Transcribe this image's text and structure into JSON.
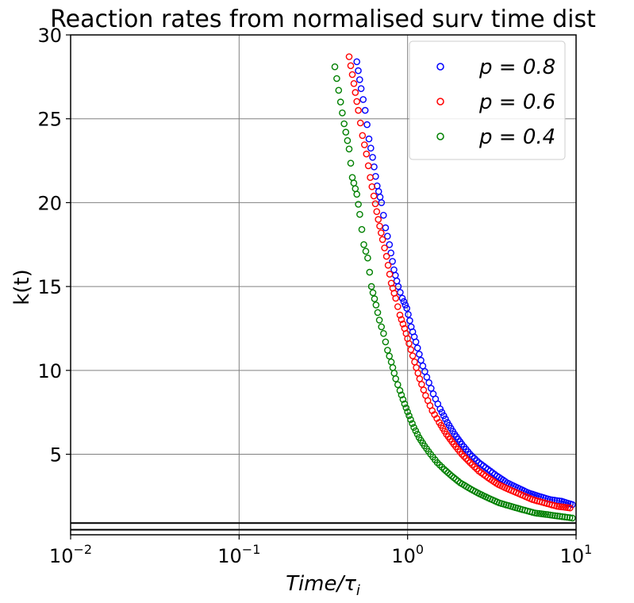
{
  "chart_data": {
    "type": "scatter",
    "title": "Reaction rates from normalised surv time dist",
    "xlabel": "Time/τ",
    "xlabel_sub": "i",
    "ylabel": "k(t)",
    "xscale": "log",
    "xlim": [
      0.01,
      10
    ],
    "ylim": [
      0.2,
      30
    ],
    "grid": true,
    "legend_position": "top-right",
    "x_ticks": [
      {
        "value": 0.01,
        "base": "10",
        "exp": "−2"
      },
      {
        "value": 0.1,
        "base": "10",
        "exp": "−1"
      },
      {
        "value": 1,
        "base": "10",
        "exp": "0"
      },
      {
        "value": 10,
        "base": "10",
        "exp": "1"
      }
    ],
    "y_ticks": [
      5,
      10,
      15,
      20,
      25,
      30
    ],
    "hlines": [
      0.5,
      0.9
    ],
    "series": [
      {
        "name": "p = 0.8",
        "color": "#0000ff",
        "x": [
          0.5,
          0.53,
          0.56,
          0.59,
          0.62,
          0.66,
          0.7,
          0.74,
          0.78,
          0.83,
          0.88,
          0.93,
          0.99,
          1.05,
          1.12,
          1.2,
          1.3,
          1.42,
          1.56,
          1.72,
          1.9,
          2.1,
          2.35,
          2.65,
          3.0,
          3.4,
          3.9,
          4.5,
          5.2,
          6.0,
          7.0,
          8.2,
          9.5
        ],
        "y": [
          28.4,
          26.8,
          25.5,
          23.8,
          22.7,
          21.0,
          20.0,
          18.5,
          17.5,
          16.0,
          15.0,
          14.3,
          13.7,
          12.6,
          11.7,
          10.6,
          9.6,
          8.6,
          7.7,
          6.9,
          6.2,
          5.6,
          5.0,
          4.5,
          4.1,
          3.7,
          3.3,
          3.0,
          2.7,
          2.5,
          2.3,
          2.2,
          2.0
        ]
      },
      {
        "name": "p = 0.6",
        "color": "#ff0000",
        "x": [
          0.45,
          0.48,
          0.51,
          0.54,
          0.57,
          0.6,
          0.63,
          0.67,
          0.71,
          0.75,
          0.8,
          0.85,
          0.9,
          0.96,
          1.02,
          1.1,
          1.18,
          1.28,
          1.4,
          1.54,
          1.7,
          1.88,
          2.1,
          2.35,
          2.65,
          3.0,
          3.45,
          4.0,
          4.7,
          5.5,
          6.5,
          7.7,
          9.2
        ],
        "y": [
          28.7,
          27.1,
          25.5,
          24.0,
          22.9,
          21.5,
          20.4,
          19.0,
          17.8,
          16.8,
          15.2,
          14.3,
          13.3,
          12.5,
          11.6,
          10.5,
          9.5,
          8.5,
          7.6,
          6.9,
          6.2,
          5.6,
          5.0,
          4.5,
          4.0,
          3.6,
          3.2,
          2.9,
          2.6,
          2.3,
          2.1,
          1.9,
          1.8
        ]
      },
      {
        "name": "p = 0.4",
        "color": "#008000",
        "x": [
          0.37,
          0.4,
          0.42,
          0.45,
          0.47,
          0.5,
          0.52,
          0.55,
          0.58,
          0.61,
          0.65,
          0.68,
          0.72,
          0.76,
          0.8,
          0.85,
          0.9,
          0.96,
          1.02,
          1.09,
          1.17,
          1.26,
          1.37,
          1.5,
          1.65,
          1.83,
          2.05,
          2.3,
          2.6,
          3.0,
          3.5,
          4.1,
          4.8,
          5.7,
          6.8,
          8.0,
          9.5
        ],
        "y": [
          28.1,
          26.0,
          24.7,
          23.2,
          21.5,
          20.5,
          19.3,
          17.5,
          16.7,
          15.0,
          13.9,
          13.0,
          12.2,
          11.2,
          10.5,
          9.5,
          8.8,
          8.0,
          7.3,
          6.6,
          6.0,
          5.5,
          5.0,
          4.5,
          4.1,
          3.7,
          3.3,
          3.0,
          2.7,
          2.4,
          2.1,
          1.9,
          1.7,
          1.5,
          1.4,
          1.3,
          1.2
        ]
      }
    ]
  }
}
